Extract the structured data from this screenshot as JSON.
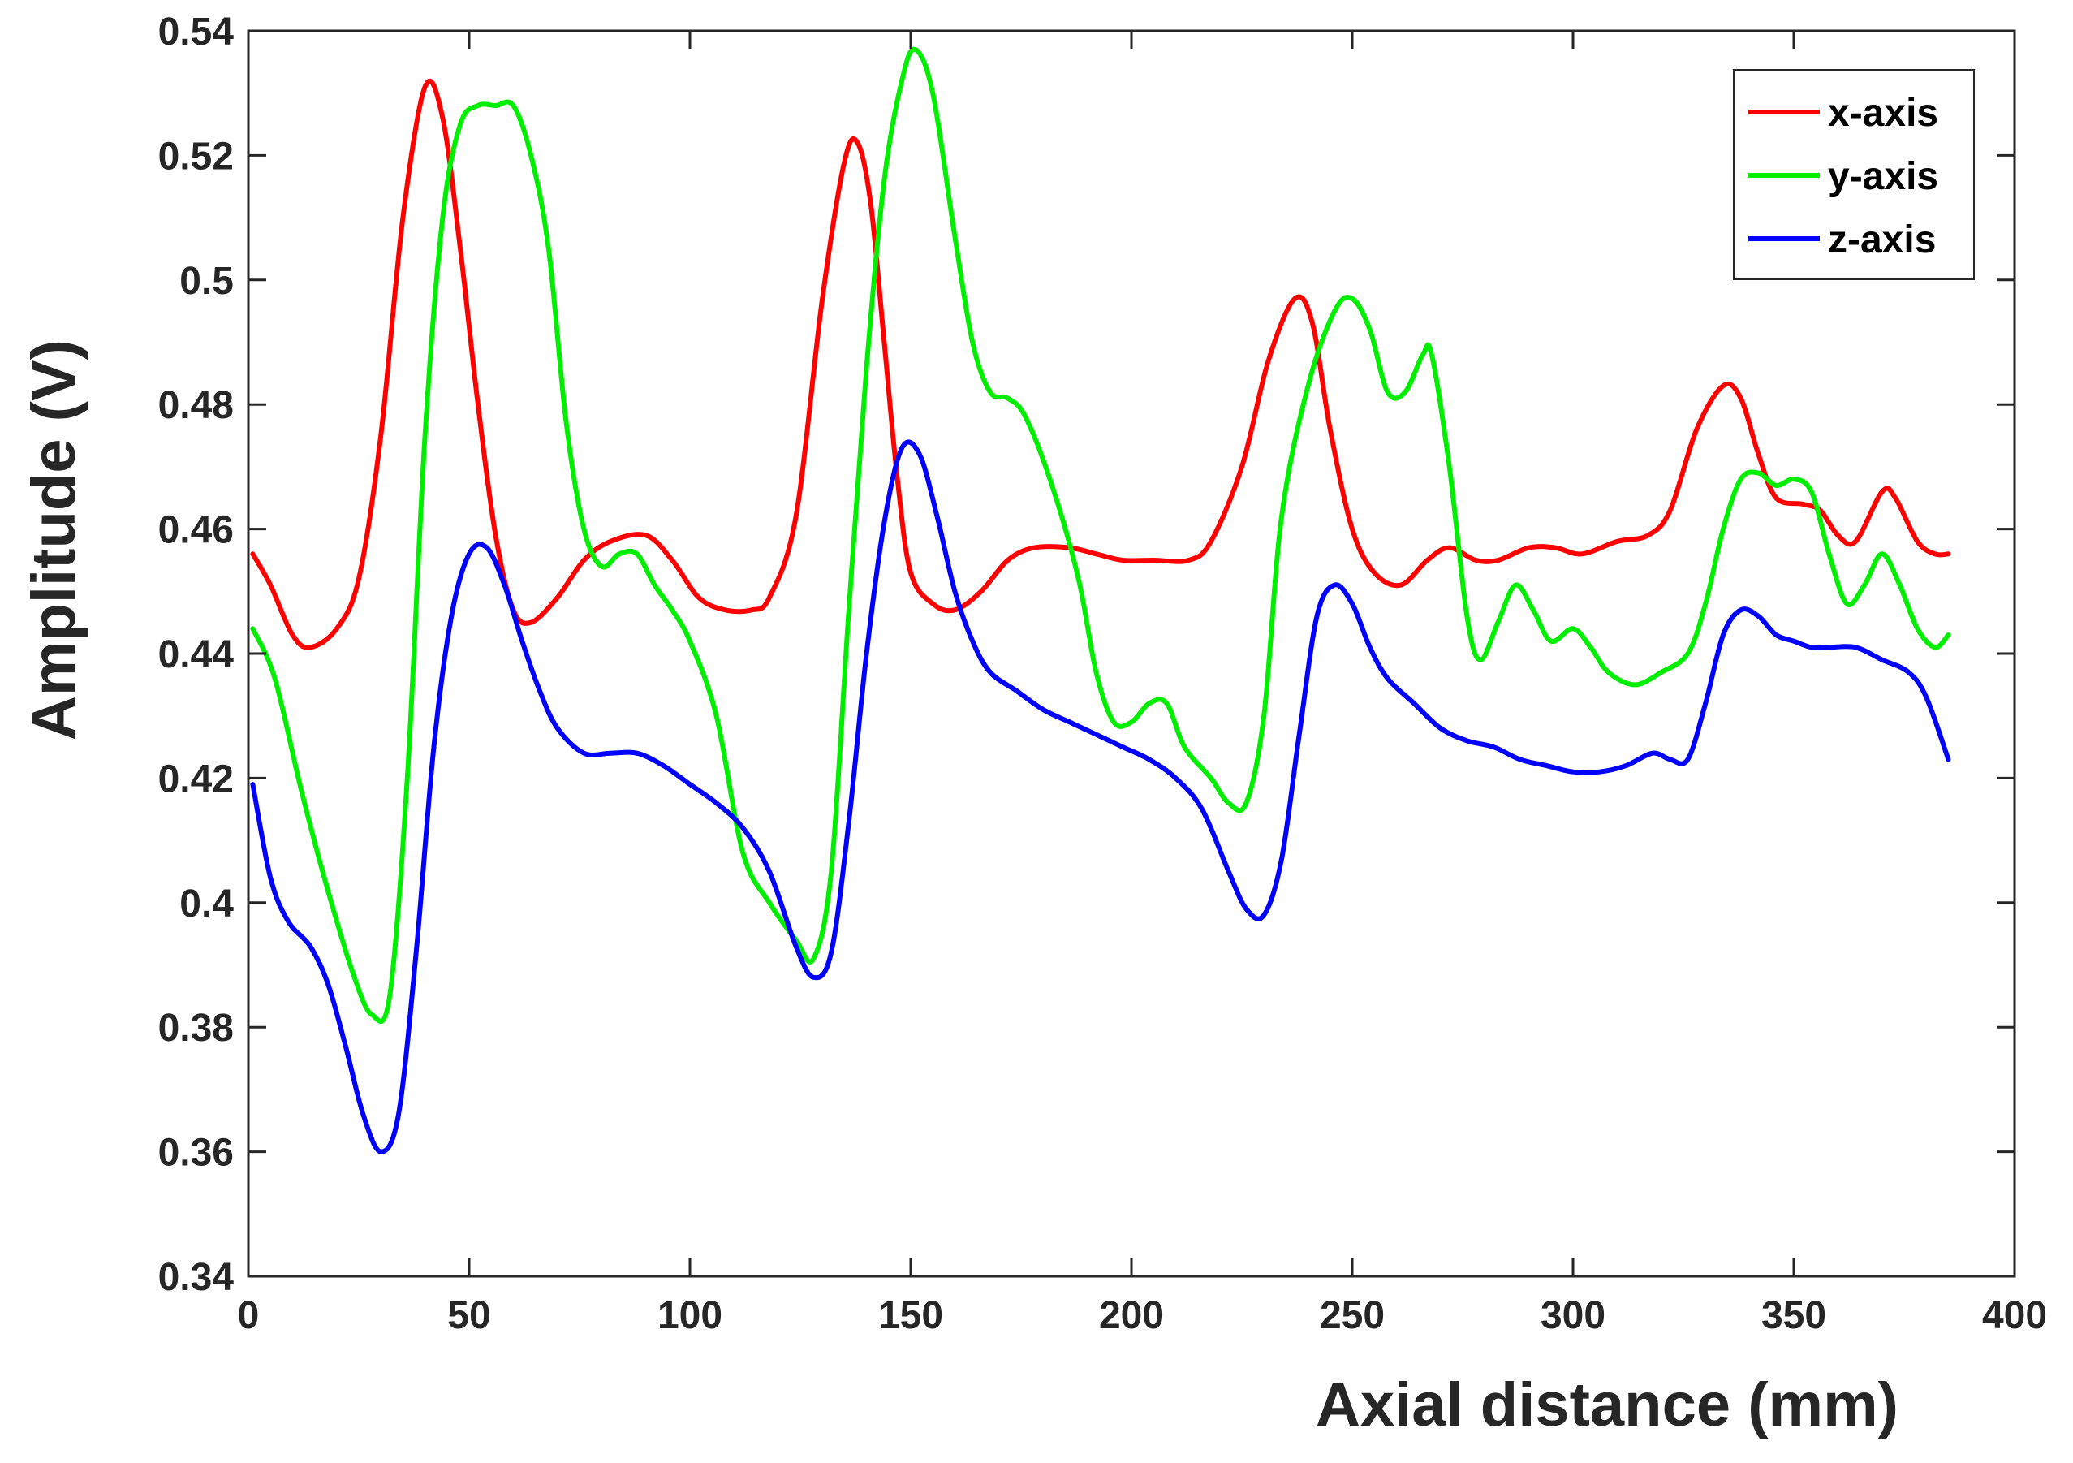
{
  "chart_data": {
    "type": "line",
    "xlabel": "Axial distance (mm)",
    "ylabel": "Amplitude (V)",
    "xlim": [
      0,
      400
    ],
    "ylim": [
      0.34,
      0.54
    ],
    "xticks": [
      0,
      50,
      100,
      150,
      200,
      250,
      300,
      350,
      400
    ],
    "xtick_labels": [
      "0",
      "50",
      "100",
      "150",
      "200",
      "250",
      "300",
      "350",
      "400"
    ],
    "yticks": [
      0.34,
      0.36,
      0.38,
      0.4,
      0.42,
      0.44,
      0.46,
      0.48,
      0.5,
      0.52,
      0.54
    ],
    "ytick_labels": [
      "0.34",
      "0.36",
      "0.38",
      "0.4",
      "0.42",
      "0.44",
      "0.46",
      "0.48",
      "0.5",
      "0.52",
      "0.54"
    ],
    "grid": false,
    "legend_position": "top-right",
    "series": [
      {
        "name": "x-axis",
        "color": "#ff0000",
        "points": [
          [
            1,
            0.456
          ],
          [
            5,
            0.451
          ],
          [
            10,
            0.443
          ],
          [
            14,
            0.441
          ],
          [
            20,
            0.444
          ],
          [
            25,
            0.452
          ],
          [
            30,
            0.475
          ],
          [
            35,
            0.51
          ],
          [
            40,
            0.531
          ],
          [
            44,
            0.526
          ],
          [
            48,
            0.505
          ],
          [
            52,
            0.48
          ],
          [
            56,
            0.459
          ],
          [
            60,
            0.447
          ],
          [
            64,
            0.445
          ],
          [
            70,
            0.449
          ],
          [
            76,
            0.455
          ],
          [
            82,
            0.458
          ],
          [
            90,
            0.459
          ],
          [
            96,
            0.455
          ],
          [
            102,
            0.449
          ],
          [
            108,
            0.447
          ],
          [
            114,
            0.447
          ],
          [
            118,
            0.449
          ],
          [
            124,
            0.462
          ],
          [
            130,
            0.497
          ],
          [
            135,
            0.519
          ],
          [
            138,
            0.522
          ],
          [
            141,
            0.512
          ],
          [
            144,
            0.49
          ],
          [
            147,
            0.468
          ],
          [
            150,
            0.453
          ],
          [
            155,
            0.448
          ],
          [
            160,
            0.447
          ],
          [
            166,
            0.45
          ],
          [
            172,
            0.455
          ],
          [
            178,
            0.457
          ],
          [
            186,
            0.457
          ],
          [
            192,
            0.456
          ],
          [
            198,
            0.455
          ],
          [
            205,
            0.455
          ],
          [
            213,
            0.455
          ],
          [
            218,
            0.458
          ],
          [
            225,
            0.47
          ],
          [
            231,
            0.487
          ],
          [
            237,
            0.497
          ],
          [
            241,
            0.493
          ],
          [
            245,
            0.476
          ],
          [
            250,
            0.46
          ],
          [
            255,
            0.453
          ],
          [
            261,
            0.451
          ],
          [
            267,
            0.455
          ],
          [
            272,
            0.457
          ],
          [
            278,
            0.455
          ],
          [
            283,
            0.455
          ],
          [
            290,
            0.457
          ],
          [
            296,
            0.457
          ],
          [
            302,
            0.456
          ],
          [
            310,
            0.458
          ],
          [
            317,
            0.459
          ],
          [
            322,
            0.463
          ],
          [
            328,
            0.476
          ],
          [
            334,
            0.483
          ],
          [
            338,
            0.481
          ],
          [
            342,
            0.472
          ],
          [
            346,
            0.465
          ],
          [
            352,
            0.464
          ],
          [
            356,
            0.463
          ],
          [
            360,
            0.459
          ],
          [
            364,
            0.458
          ],
          [
            370,
            0.466
          ],
          [
            373,
            0.465
          ],
          [
            378,
            0.458
          ],
          [
            382,
            0.456
          ],
          [
            385,
            0.456
          ]
        ]
      },
      {
        "name": "y-axis",
        "color": "#00ee00",
        "points": [
          [
            1,
            0.444
          ],
          [
            6,
            0.436
          ],
          [
            12,
            0.418
          ],
          [
            18,
            0.402
          ],
          [
            24,
            0.388
          ],
          [
            28,
            0.382
          ],
          [
            32,
            0.385
          ],
          [
            36,
            0.42
          ],
          [
            40,
            0.475
          ],
          [
            44,
            0.51
          ],
          [
            48,
            0.525
          ],
          [
            52,
            0.528
          ],
          [
            56,
            0.528
          ],
          [
            60,
            0.528
          ],
          [
            64,
            0.52
          ],
          [
            68,
            0.505
          ],
          [
            72,
            0.477
          ],
          [
            76,
            0.46
          ],
          [
            80,
            0.454
          ],
          [
            84,
            0.456
          ],
          [
            88,
            0.456
          ],
          [
            92,
            0.451
          ],
          [
            96,
            0.447
          ],
          [
            100,
            0.442
          ],
          [
            106,
            0.43
          ],
          [
            112,
            0.408
          ],
          [
            118,
            0.4
          ],
          [
            124,
            0.394
          ],
          [
            128,
            0.391
          ],
          [
            132,
            0.405
          ],
          [
            136,
            0.447
          ],
          [
            140,
            0.486
          ],
          [
            144,
            0.516
          ],
          [
            148,
            0.532
          ],
          [
            151,
            0.537
          ],
          [
            155,
            0.53
          ],
          [
            160,
            0.507
          ],
          [
            164,
            0.49
          ],
          [
            168,
            0.482
          ],
          [
            172,
            0.481
          ],
          [
            176,
            0.478
          ],
          [
            182,
            0.467
          ],
          [
            188,
            0.452
          ],
          [
            192,
            0.437
          ],
          [
            196,
            0.429
          ],
          [
            200,
            0.429
          ],
          [
            204,
            0.432
          ],
          [
            208,
            0.432
          ],
          [
            212,
            0.425
          ],
          [
            218,
            0.42
          ],
          [
            222,
            0.416
          ],
          [
            226,
            0.416
          ],
          [
            230,
            0.43
          ],
          [
            234,
            0.462
          ],
          [
            240,
            0.483
          ],
          [
            246,
            0.495
          ],
          [
            250,
            0.497
          ],
          [
            254,
            0.492
          ],
          [
            258,
            0.482
          ],
          [
            262,
            0.482
          ],
          [
            266,
            0.488
          ],
          [
            268,
            0.488
          ],
          [
            272,
            0.47
          ],
          [
            276,
            0.446
          ],
          [
            279,
            0.439
          ],
          [
            283,
            0.445
          ],
          [
            287,
            0.451
          ],
          [
            291,
            0.447
          ],
          [
            295,
            0.442
          ],
          [
            300,
            0.444
          ],
          [
            304,
            0.441
          ],
          [
            308,
            0.437
          ],
          [
            314,
            0.435
          ],
          [
            320,
            0.437
          ],
          [
            326,
            0.44
          ],
          [
            330,
            0.448
          ],
          [
            334,
            0.46
          ],
          [
            338,
            0.468
          ],
          [
            342,
            0.469
          ],
          [
            346,
            0.467
          ],
          [
            350,
            0.468
          ],
          [
            354,
            0.466
          ],
          [
            358,
            0.456
          ],
          [
            362,
            0.448
          ],
          [
            366,
            0.451
          ],
          [
            370,
            0.456
          ],
          [
            374,
            0.451
          ],
          [
            378,
            0.444
          ],
          [
            382,
            0.441
          ],
          [
            385,
            0.443
          ]
        ]
      },
      {
        "name": "z-axis",
        "color": "#0000ff",
        "points": [
          [
            1,
            0.419
          ],
          [
            5,
            0.404
          ],
          [
            9,
            0.397
          ],
          [
            14,
            0.393
          ],
          [
            18,
            0.387
          ],
          [
            22,
            0.377
          ],
          [
            26,
            0.366
          ],
          [
            30,
            0.36
          ],
          [
            34,
            0.366
          ],
          [
            38,
            0.392
          ],
          [
            42,
            0.425
          ],
          [
            46,
            0.446
          ],
          [
            50,
            0.456
          ],
          [
            54,
            0.457
          ],
          [
            58,
            0.451
          ],
          [
            62,
            0.442
          ],
          [
            66,
            0.434
          ],
          [
            70,
            0.428
          ],
          [
            76,
            0.424
          ],
          [
            82,
            0.424
          ],
          [
            88,
            0.424
          ],
          [
            94,
            0.422
          ],
          [
            100,
            0.419
          ],
          [
            106,
            0.416
          ],
          [
            112,
            0.412
          ],
          [
            118,
            0.405
          ],
          [
            124,
            0.393
          ],
          [
            128,
            0.388
          ],
          [
            132,
            0.392
          ],
          [
            136,
            0.413
          ],
          [
            140,
            0.44
          ],
          [
            144,
            0.461
          ],
          [
            148,
            0.473
          ],
          [
            152,
            0.472
          ],
          [
            156,
            0.462
          ],
          [
            160,
            0.45
          ],
          [
            164,
            0.442
          ],
          [
            168,
            0.437
          ],
          [
            174,
            0.434
          ],
          [
            180,
            0.431
          ],
          [
            186,
            0.429
          ],
          [
            192,
            0.427
          ],
          [
            198,
            0.425
          ],
          [
            204,
            0.423
          ],
          [
            210,
            0.42
          ],
          [
            216,
            0.415
          ],
          [
            222,
            0.405
          ],
          [
            226,
            0.399
          ],
          [
            230,
            0.398
          ],
          [
            234,
            0.407
          ],
          [
            238,
            0.427
          ],
          [
            242,
            0.446
          ],
          [
            246,
            0.451
          ],
          [
            250,
            0.448
          ],
          [
            254,
            0.441
          ],
          [
            258,
            0.436
          ],
          [
            264,
            0.432
          ],
          [
            270,
            0.428
          ],
          [
            276,
            0.426
          ],
          [
            282,
            0.425
          ],
          [
            288,
            0.423
          ],
          [
            294,
            0.422
          ],
          [
            300,
            0.421
          ],
          [
            306,
            0.421
          ],
          [
            312,
            0.422
          ],
          [
            318,
            0.424
          ],
          [
            322,
            0.423
          ],
          [
            326,
            0.423
          ],
          [
            330,
            0.432
          ],
          [
            334,
            0.443
          ],
          [
            338,
            0.447
          ],
          [
            342,
            0.446
          ],
          [
            346,
            0.443
          ],
          [
            350,
            0.442
          ],
          [
            354,
            0.441
          ],
          [
            358,
            0.441
          ],
          [
            364,
            0.441
          ],
          [
            370,
            0.439
          ],
          [
            376,
            0.437
          ],
          [
            380,
            0.433
          ],
          [
            385,
            0.423
          ]
        ]
      }
    ]
  }
}
